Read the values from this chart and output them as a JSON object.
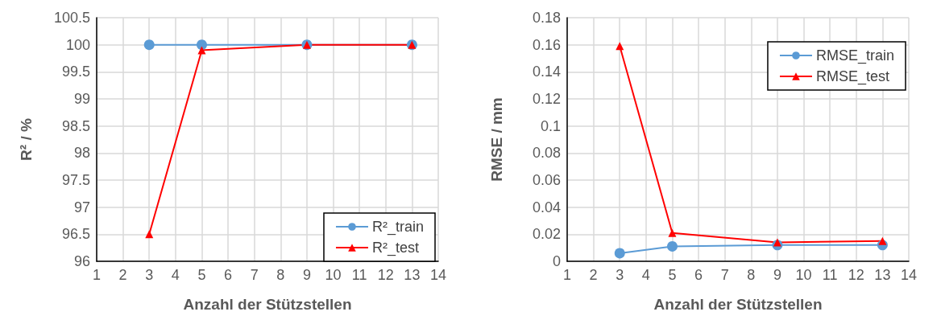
{
  "chart_data": [
    {
      "type": "line",
      "xlabel": "Anzahl der Stützstellen",
      "ylabel": "R² / %",
      "xlim": [
        1,
        14
      ],
      "xticks": [
        1,
        2,
        3,
        4,
        5,
        6,
        7,
        8,
        9,
        10,
        11,
        12,
        13,
        14
      ],
      "ylim": [
        96,
        100.5
      ],
      "yticks": [
        96,
        96.5,
        97,
        97.5,
        98,
        98.5,
        99,
        99.5,
        100,
        100.5
      ],
      "grid": true,
      "legend": "bottom right",
      "line_style": "solid",
      "series": [
        {
          "name": "R²_train",
          "color": "#5b9bd5",
          "marker": "circle",
          "x": [
            3,
            5,
            9,
            13
          ],
          "values": [
            100,
            100,
            100,
            100
          ]
        },
        {
          "name": "R²_test",
          "color": "#ff0000",
          "marker": "triangle",
          "x": [
            3,
            5,
            9,
            13
          ],
          "values": [
            96.5,
            99.9,
            100,
            100
          ]
        }
      ]
    },
    {
      "type": "line",
      "xlabel": "Anzahl der Stützstellen",
      "ylabel": "RMSE / mm",
      "xlim": [
        1,
        14
      ],
      "xticks": [
        1,
        2,
        3,
        4,
        5,
        6,
        7,
        8,
        9,
        10,
        11,
        12,
        13,
        14
      ],
      "ylim": [
        0,
        0.18
      ],
      "yticks": [
        0,
        0.02,
        0.04,
        0.06,
        0.08,
        0.1,
        0.12,
        0.14,
        0.16,
        0.18
      ],
      "grid": true,
      "legend": "top right",
      "line_style": "solid",
      "series": [
        {
          "name": "RMSE_train",
          "color": "#5b9bd5",
          "marker": "circle",
          "x": [
            3,
            5,
            9,
            13
          ],
          "values": [
            0.006,
            0.011,
            0.012,
            0.012
          ]
        },
        {
          "name": "RMSE_test",
          "color": "#ff0000",
          "marker": "triangle",
          "x": [
            3,
            5,
            9,
            13
          ],
          "values": [
            0.159,
            0.021,
            0.014,
            0.015
          ]
        }
      ]
    }
  ]
}
